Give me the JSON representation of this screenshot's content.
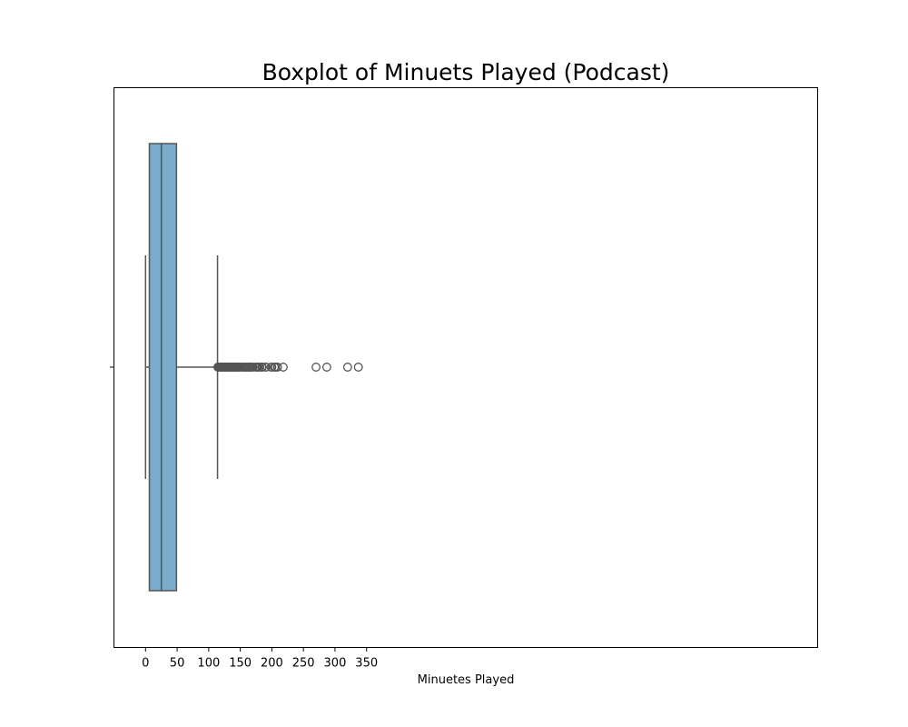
{
  "chart_data": {
    "type": "box",
    "title": "Boxplot of Minuets Played (Podcast)",
    "xlabel": "Minuetes Played",
    "ylabel": "",
    "orientation": "horizontal",
    "xlim": [
      -17,
      354
    ],
    "xticks": [
      0,
      50,
      100,
      150,
      200,
      250,
      300,
      350
    ],
    "grid": false,
    "legend": "none",
    "box": {
      "whisker_low": 0,
      "q1": 6,
      "median": 25,
      "q3": 49,
      "whisker_high": 114,
      "fill_color": "#79abcc",
      "line_color": "#555555"
    },
    "outliers": [
      114.5,
      115,
      115.5,
      116,
      116.5,
      117,
      117.5,
      118,
      118.5,
      119,
      119.5,
      120,
      120.5,
      121,
      121.5,
      122,
      122.5,
      123,
      123.5,
      124,
      125,
      126,
      127,
      127.5,
      128,
      129,
      130,
      130.5,
      131,
      132,
      133,
      134,
      135,
      135.5,
      136,
      137,
      138,
      139,
      140,
      141,
      142,
      142.5,
      143,
      144,
      145,
      146,
      147,
      148,
      150,
      153,
      155,
      157,
      158,
      159,
      160,
      161,
      163,
      165,
      166,
      167,
      168,
      170,
      175,
      176,
      177,
      178,
      181,
      184,
      185,
      190,
      191,
      199,
      200,
      204,
      206,
      209,
      218,
      270,
      287,
      320,
      337
    ]
  }
}
